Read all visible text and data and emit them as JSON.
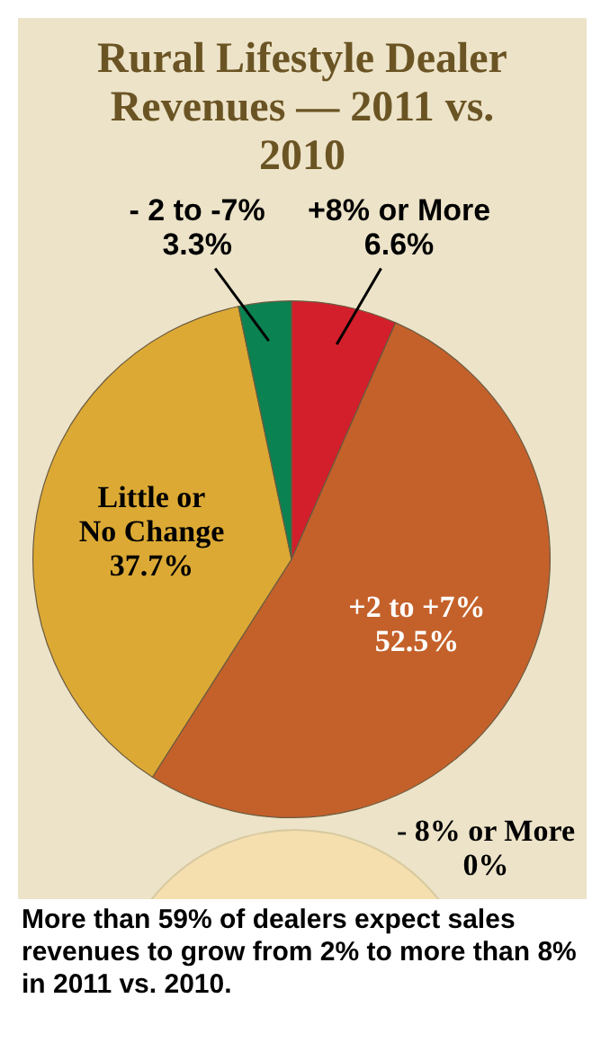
{
  "chart_data": {
    "type": "pie",
    "title": "Rural Lifestyle Dealer Revenues — 2011 vs. 2010",
    "categories": [
      "+8% or More",
      "+2 to +7%",
      "- 8% or More",
      "Little or No Change",
      "- 2 to -7%"
    ],
    "values": [
      6.6,
      52.5,
      0,
      37.7,
      3.3
    ],
    "value_labels": [
      "6.6%",
      "52.5%",
      "0%",
      "37.7%",
      "3.3%"
    ],
    "colors": [
      "#d21f2b",
      "#c4612a",
      "#f5dfae",
      "#dcaa34",
      "#0b8251"
    ],
    "legend": false,
    "annotations": [
      "More than 59% of dealers expect sales revenues to grow from 2% to more than 8% in 2011 vs. 2010."
    ]
  }
}
